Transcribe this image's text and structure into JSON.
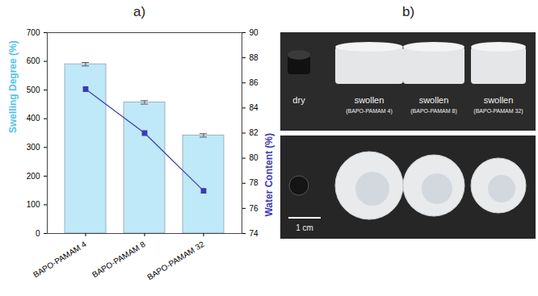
{
  "chart_data": {
    "type": "bar",
    "title": "a)",
    "categories": [
      "BAPO-PAMAM 4",
      "BAPO-PAMAM 8",
      "BAPO-PAMAM 32"
    ],
    "ylabel": "Swelling Degree (%)",
    "y2label": "Water Content (%)",
    "series": [
      {
        "type": "bar",
        "color": "#bfe8f8",
        "values": [
          590,
          457,
          342
        ],
        "errors": [
          6,
          6,
          6
        ]
      },
      {
        "type": "line",
        "axis": "y2",
        "color": "#3b3bb3",
        "marker": "square",
        "values": [
          85.5,
          82.0,
          77.4
        ],
        "errors": [
          0.1,
          0.15,
          0.2
        ]
      }
    ],
    "ylim": [
      0,
      700
    ],
    "yticks": [
      0,
      100,
      200,
      300,
      400,
      500,
      600,
      700
    ],
    "y2lim": [
      74,
      90
    ],
    "y2ticks": [
      74,
      76,
      78,
      80,
      82,
      84,
      86,
      88,
      90
    ],
    "grid": false
  },
  "panel_b": {
    "title": "b)",
    "labels": [
      "dry",
      "swollen",
      "swollen",
      "swollen"
    ],
    "sublabels": [
      null,
      "(BAPO-PAMAM 4)",
      "(BAPO-PAMAM 8)",
      "(BAPO-PAMAM 32)"
    ],
    "scale_bar": "1 cm"
  }
}
